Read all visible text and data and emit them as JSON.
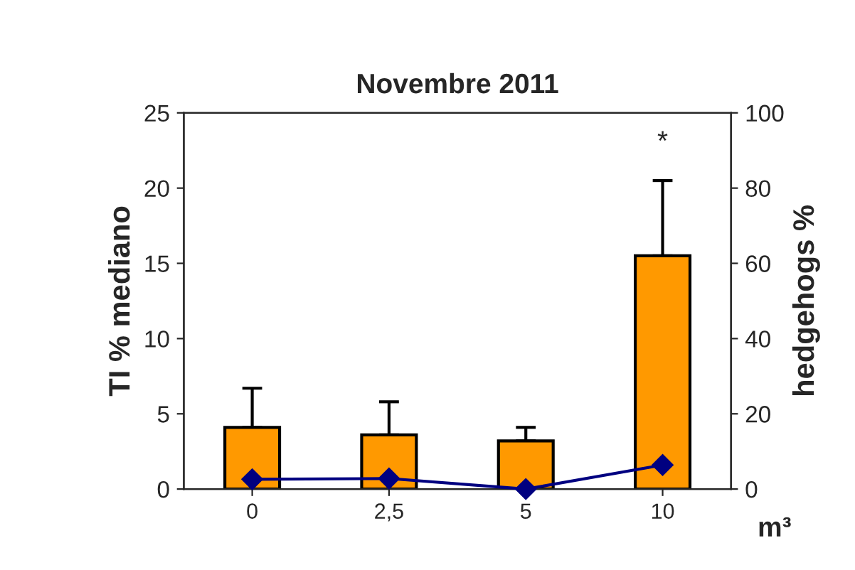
{
  "chart_data": {
    "type": "bar",
    "title": "Novembre 2011",
    "xlabel": "m³",
    "ylabel": "TI % mediano",
    "y2label": "hedgehogs %",
    "categories": [
      "0",
      "2,5",
      "5",
      "10"
    ],
    "series": [
      {
        "color": "#ff9900",
        "values": [
          4.1,
          3.6,
          3.2,
          15.5
        ],
        "errors": [
          [
            4.1,
            6.7
          ],
          [
            3.6,
            5.8
          ],
          [
            3.2,
            4.1
          ],
          [
            15.5,
            20.5
          ]
        ]
      },
      {
        "type": "line",
        "axis": "y2",
        "color": "#000080",
        "values": [
          2.6,
          2.8,
          0,
          6.4
        ],
        "marker": "diamond",
        "line_style": "solid"
      }
    ],
    "annotations": [
      "*"
    ],
    "ylim": [
      0,
      25
    ],
    "yticks": [
      0,
      5,
      10,
      15,
      20,
      25
    ],
    "y2lim": [
      0,
      100
    ],
    "y2ticks": [
      0,
      20,
      40,
      60,
      80,
      100
    ],
    "grid": false,
    "legend": false
  }
}
